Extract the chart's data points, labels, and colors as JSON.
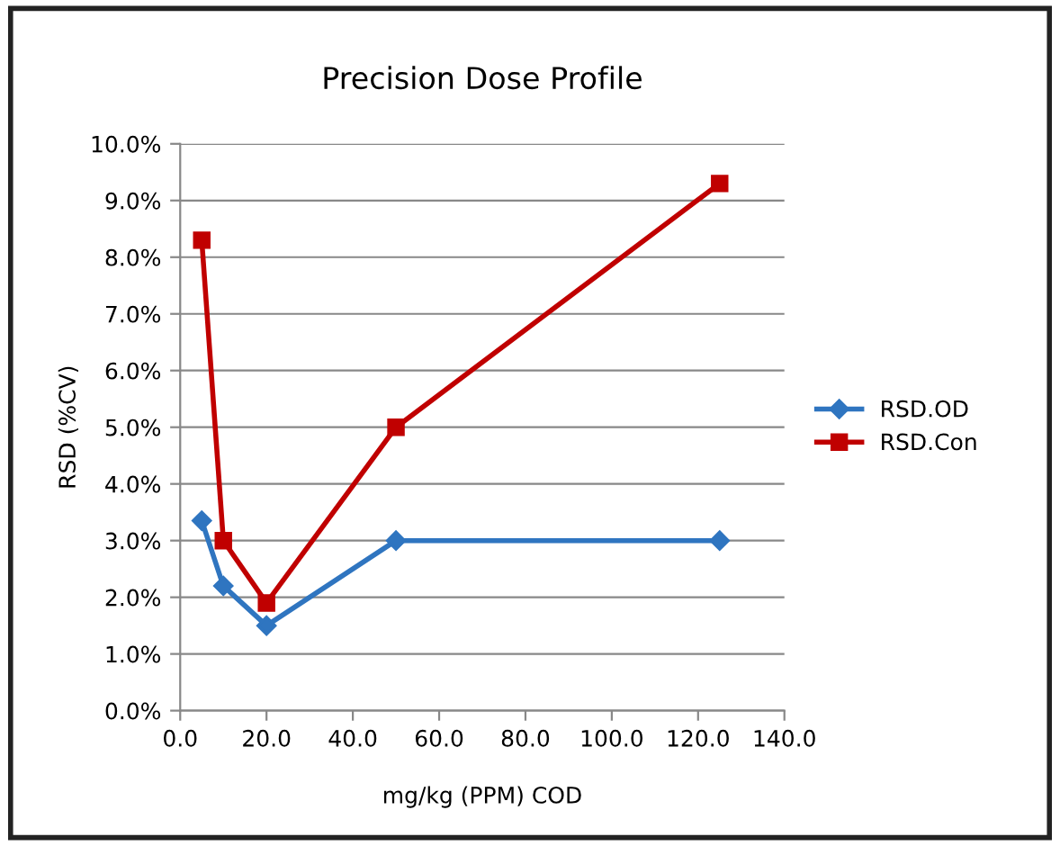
{
  "chart_data": {
    "type": "line",
    "title": "Precision Dose Profile",
    "xlabel": "mg/kg (PPM) COD",
    "ylabel": "RSD (%CV)",
    "x": [
      5,
      10,
      20,
      50,
      125
    ],
    "series": [
      {
        "name": "RSD.OD",
        "color": "#2f75c0",
        "marker": "diamond",
        "values": [
          3.35,
          2.2,
          1.5,
          3.0,
          3.0
        ]
      },
      {
        "name": "RSD.Con",
        "color": "#c00000",
        "marker": "square",
        "values": [
          8.3,
          3.0,
          1.9,
          5.0,
          9.3
        ]
      }
    ],
    "xlim": [
      0,
      140
    ],
    "xticks": [
      {
        "value": 0,
        "label": "0.0"
      },
      {
        "value": 20,
        "label": "20.0"
      },
      {
        "value": 40,
        "label": "40.0"
      },
      {
        "value": 60,
        "label": "60.0"
      },
      {
        "value": 80,
        "label": "80.0"
      },
      {
        "value": 100,
        "label": "100.0"
      },
      {
        "value": 120,
        "label": "120.0"
      },
      {
        "value": 140,
        "label": "140.0"
      }
    ],
    "ylim": [
      0,
      10
    ],
    "yticks": [
      {
        "value": 0,
        "label": "0.0%"
      },
      {
        "value": 1,
        "label": "1.0%"
      },
      {
        "value": 2,
        "label": "2.0%"
      },
      {
        "value": 3,
        "label": "3.0%"
      },
      {
        "value": 4,
        "label": "4.0%"
      },
      {
        "value": 5,
        "label": "5.0%"
      },
      {
        "value": 6,
        "label": "6.0%"
      },
      {
        "value": 7,
        "label": "7.0%"
      },
      {
        "value": 8,
        "label": "8.0%"
      },
      {
        "value": 9,
        "label": "9.0%"
      },
      {
        "value": 10,
        "label": "10.0%"
      }
    ],
    "grid": "y",
    "legend": "right",
    "line_style": "solid"
  }
}
